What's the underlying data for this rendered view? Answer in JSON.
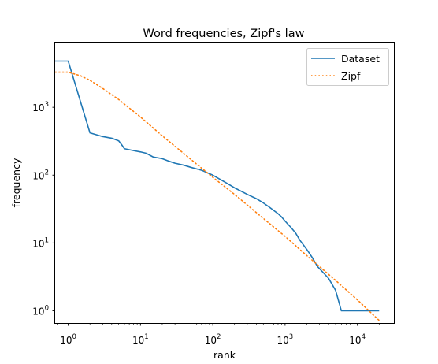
{
  "chart_data": {
    "type": "line",
    "title": "Word frequencies, Zipf's law",
    "xlabel": "rank",
    "ylabel": "frequency",
    "xscale": "log",
    "yscale": "log",
    "xlim": [
      0.66,
      32000
    ],
    "ylim": [
      0.66,
      9000
    ],
    "grid": false,
    "legend_position": "top-right",
    "x_ticks": [
      {
        "base": "10",
        "exp": "0",
        "value": 1
      },
      {
        "base": "10",
        "exp": "1",
        "value": 10
      },
      {
        "base": "10",
        "exp": "2",
        "value": 100
      },
      {
        "base": "10",
        "exp": "3",
        "value": 1000
      },
      {
        "base": "10",
        "exp": "4",
        "value": 10000
      }
    ],
    "y_ticks": [
      {
        "base": "10",
        "exp": "0",
        "value": 1
      },
      {
        "base": "10",
        "exp": "1",
        "value": 10
      },
      {
        "base": "10",
        "exp": "2",
        "value": 100
      },
      {
        "base": "10",
        "exp": "3",
        "value": 1000
      }
    ],
    "series": [
      {
        "name": "Dataset",
        "color": "#1f77b4",
        "style": "solid",
        "x": [
          0.66,
          1,
          2,
          3,
          4,
          5,
          5.5,
          6,
          8,
          10,
          12,
          15,
          20,
          25,
          30,
          40,
          50,
          70,
          100,
          150,
          200,
          300,
          400,
          500,
          600,
          700,
          800,
          900,
          1000,
          1200,
          1400,
          1600,
          2000,
          2400,
          2800,
          3500,
          4000,
          5000,
          6000,
          8000,
          10000,
          20000
        ],
        "y": [
          4800,
          4800,
          420,
          370,
          350,
          320,
          280,
          245,
          230,
          220,
          210,
          185,
          175,
          160,
          150,
          140,
          130,
          118,
          100,
          78,
          65,
          52,
          45,
          39,
          34,
          30,
          27,
          24,
          21,
          17,
          14,
          11,
          8,
          6,
          4.5,
          3.5,
          3,
          2,
          1,
          1,
          1,
          1
        ]
      },
      {
        "name": "Zipf",
        "color": "#ff7f0e",
        "style": "dotted",
        "x": [
          0.66,
          1,
          1.5,
          2,
          3,
          5,
          10,
          20,
          50,
          100,
          200,
          500,
          1000,
          2000,
          5000,
          10000,
          20000
        ],
        "y": [
          3300,
          3300,
          2900,
          2500,
          1900,
          1300,
          720,
          380,
          170,
          93,
          52,
          23,
          12.5,
          6.5,
          2.8,
          1.45,
          0.72
        ]
      }
    ]
  }
}
